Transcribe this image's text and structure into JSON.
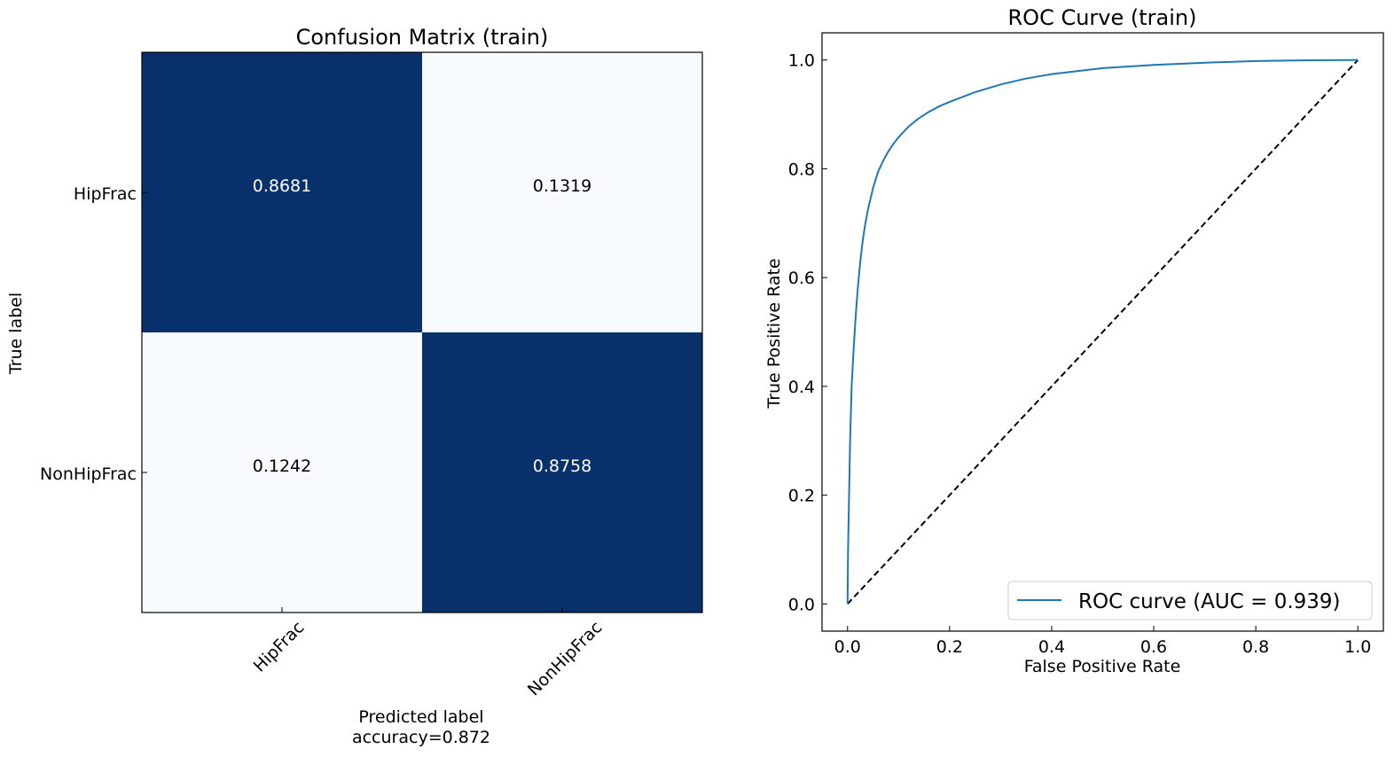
{
  "chart_data": [
    {
      "type": "heatmap",
      "title": "Confusion Matrix (train)",
      "xlabel": "Predicted label",
      "xlabel_sub": "accuracy=0.872",
      "ylabel": "True label",
      "row_labels": [
        "HipFrac",
        "NonHipFrac"
      ],
      "col_labels": [
        "HipFrac",
        "NonHipFrac"
      ],
      "values": [
        [
          0.8681,
          0.1319
        ],
        [
          0.1242,
          0.8758
        ]
      ],
      "value_labels": [
        [
          "0.8681",
          "0.1319"
        ],
        [
          "0.1242",
          "0.8758"
        ]
      ],
      "colormap": "Blues",
      "colors": {
        "high": "#08306b",
        "low": "#f7fbff",
        "text_on_dark": "#ffffff",
        "text_on_light": "#000000"
      }
    },
    {
      "type": "line",
      "title": "ROC Curve (train)",
      "xlabel": "False Positive Rate",
      "ylabel": "True Positive Rate",
      "xlim": [
        -0.05,
        1.05
      ],
      "ylim": [
        -0.05,
        1.05
      ],
      "xticks": [
        "0.0",
        "0.2",
        "0.4",
        "0.6",
        "0.8",
        "1.0"
      ],
      "yticks": [
        "0.0",
        "0.2",
        "0.4",
        "0.6",
        "0.8",
        "1.0"
      ],
      "legend": {
        "position": "lower right",
        "entries": [
          "ROC curve (AUC = 0.939)"
        ]
      },
      "series": [
        {
          "name": "ROC curve (AUC = 0.939)",
          "color": "#1f77b4",
          "style": "solid",
          "x": [
            0.0,
            0.001,
            0.003,
            0.005,
            0.008,
            0.012,
            0.016,
            0.02,
            0.025,
            0.03,
            0.035,
            0.04,
            0.05,
            0.06,
            0.07,
            0.08,
            0.09,
            0.1,
            0.12,
            0.14,
            0.16,
            0.18,
            0.2,
            0.25,
            0.3,
            0.35,
            0.4,
            0.5,
            0.6,
            0.7,
            0.8,
            0.9,
            1.0
          ],
          "y": [
            0.0,
            0.1,
            0.2,
            0.3,
            0.4,
            0.47,
            0.53,
            0.58,
            0.63,
            0.67,
            0.7,
            0.725,
            0.765,
            0.795,
            0.815,
            0.832,
            0.846,
            0.858,
            0.878,
            0.893,
            0.905,
            0.915,
            0.923,
            0.941,
            0.955,
            0.966,
            0.974,
            0.985,
            0.991,
            0.995,
            0.998,
            0.9995,
            1.0
          ]
        },
        {
          "name": "",
          "color": "#000000",
          "style": "dashed",
          "x": [
            0.0,
            1.0
          ],
          "y": [
            0.0,
            1.0
          ]
        }
      ]
    }
  ]
}
